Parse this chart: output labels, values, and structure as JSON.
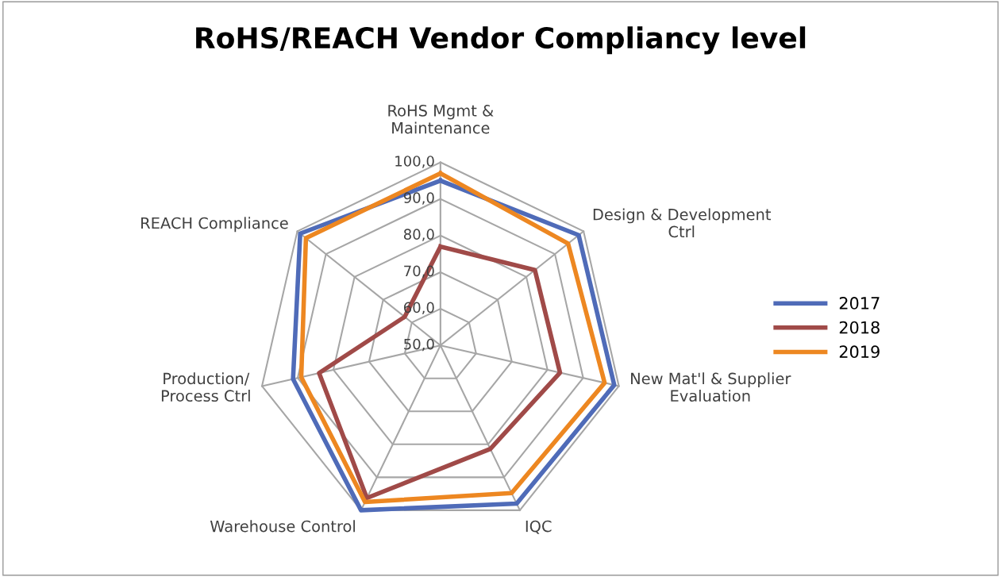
{
  "chart_data": {
    "type": "radar",
    "title": "RoHS/REACH Vendor Compliancy level",
    "categories": [
      "RoHS Mgmt &\nMaintenance",
      "Design & Development\nCtrl",
      "New Mat'l & Supplier\nEvaluation",
      "IQC",
      "Warehouse Control",
      "Production/\nProcess Ctrl",
      "REACH Compliance"
    ],
    "series": [
      {
        "name": "2017",
        "color": "#4f6bb8",
        "values": [
          95,
          98.3,
          98.7,
          98,
          100,
          91.3,
          99
        ]
      },
      {
        "name": "2018",
        "color": "#a04a48",
        "values": [
          77,
          83,
          83.5,
          81.4,
          96.3,
          84,
          62.5
        ]
      },
      {
        "name": "2019",
        "color": "#ed8721",
        "values": [
          97,
          94.6,
          96,
          94.8,
          97.5,
          89,
          97
        ]
      }
    ],
    "ylim": [
      50,
      100
    ],
    "yticks": [
      {
        "value": 50,
        "label": "50,0"
      },
      {
        "value": 60,
        "label": "60,0"
      },
      {
        "value": 70,
        "label": "70,0"
      },
      {
        "value": 80,
        "label": "80,0"
      },
      {
        "value": 90,
        "label": "90,0"
      },
      {
        "value": 100,
        "label": "100,0"
      }
    ],
    "legend": "right",
    "grid": true
  }
}
